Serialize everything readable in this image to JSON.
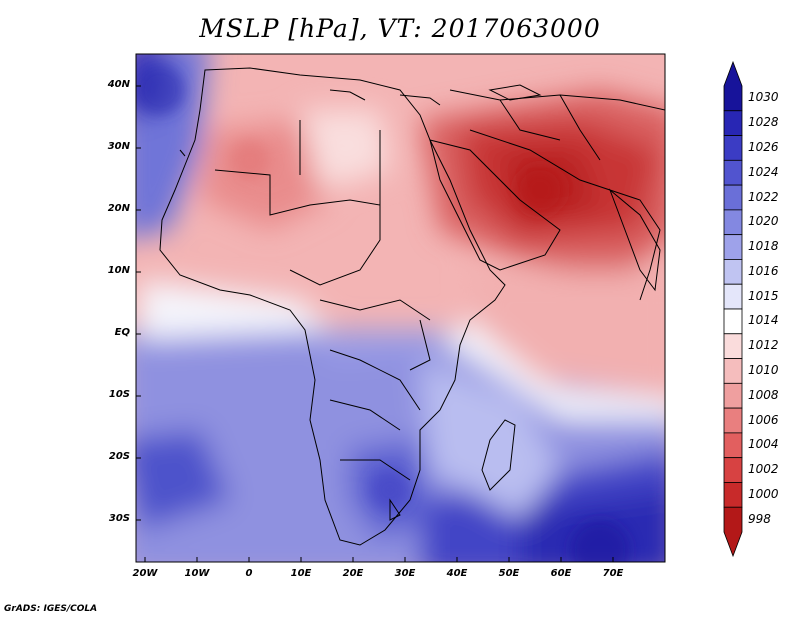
{
  "title": "MSLP [hPa], VT: 2017063000",
  "credit": "GrADS: IGES/COLA",
  "y_ticks": [
    "40N",
    "30N",
    "20N",
    "10N",
    "EQ",
    "10S",
    "20S",
    "30S"
  ],
  "x_ticks": [
    "20W",
    "10W",
    "0",
    "10E",
    "20E",
    "30E",
    "40E",
    "50E",
    "60E",
    "70E"
  ],
  "colorbar": {
    "labels": [
      "1030",
      "1028",
      "1026",
      "1024",
      "1022",
      "1020",
      "1018",
      "1016",
      "1015",
      "1014",
      "1012",
      "1010",
      "1008",
      "1006",
      "1004",
      "1002",
      "1000",
      "998"
    ],
    "colors": [
      "#17139a",
      "#2826b4",
      "#3b3cc4",
      "#5154cf",
      "#6a6fd8",
      "#8388e1",
      "#9ea2ea",
      "#c0c4f2",
      "#e4e6fa",
      "#ffffff",
      "#fadcdc",
      "#f5bdbd",
      "#ef9f9f",
      "#e97f7f",
      "#e25f5f",
      "#d74242",
      "#c82a2a",
      "#b31818"
    ]
  },
  "map": {
    "lon_range": [
      -22,
      80
    ],
    "lat_range": [
      -37,
      45
    ],
    "ocean_pressure_color": "#8f8fe2",
    "land_label": "Africa, Arabia, South Asia"
  }
}
